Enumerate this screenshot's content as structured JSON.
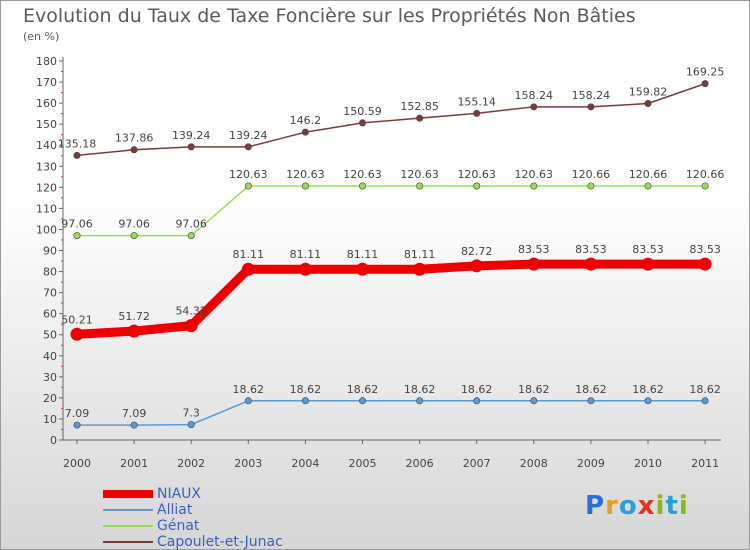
{
  "title": "Evolution du Taux de Taxe Foncière sur les Propriétés Non Bâties",
  "unit_label": "(en %)",
  "chart_data": {
    "type": "line",
    "title": "Evolution du Taux de Taxe Foncière sur les Propriétés Non Bâties",
    "ylabel": "(en %)",
    "xlabel": "",
    "ylim": [
      0,
      180
    ],
    "yticks": [
      0,
      10,
      20,
      30,
      40,
      50,
      60,
      70,
      80,
      90,
      100,
      110,
      120,
      130,
      140,
      150,
      160,
      170,
      180
    ],
    "categories": [
      "2000",
      "2001",
      "2002",
      "2003",
      "2004",
      "2005",
      "2006",
      "2007",
      "2008",
      "2009",
      "2010",
      "2011"
    ],
    "grid": false,
    "legend_position": "bottom-left",
    "series": [
      {
        "name": "NIAUX",
        "color": "#ee0000",
        "emphasis": true,
        "values": [
          50.21,
          51.72,
          54.32,
          81.11,
          81.11,
          81.11,
          81.11,
          82.72,
          83.53,
          83.53,
          83.53,
          83.53
        ],
        "labels": [
          "50.21",
          "51.72",
          "54.32",
          "81.11",
          "81.11",
          "81.11",
          "81.11",
          "82.72",
          "83.53",
          "83.53",
          "83.53",
          "83.53"
        ]
      },
      {
        "name": "Alliat",
        "color": "#5b9bd5",
        "emphasis": false,
        "values": [
          7.09,
          7.09,
          7.3,
          18.62,
          18.62,
          18.62,
          18.62,
          18.62,
          18.62,
          18.62,
          18.62,
          18.62
        ],
        "labels": [
          "7.09",
          "7.09",
          "7.3",
          "18.62",
          "18.62",
          "18.62",
          "18.62",
          "18.62",
          "18.62",
          "18.62",
          "18.62",
          "18.62"
        ]
      },
      {
        "name": "Génat",
        "color": "#99dd55",
        "emphasis": false,
        "values": [
          97.06,
          97.06,
          97.06,
          120.63,
          120.63,
          120.63,
          120.63,
          120.63,
          120.63,
          120.66,
          120.66,
          120.66
        ],
        "labels": [
          "97.06",
          "97.06",
          "97.06",
          "120.63",
          "120.63",
          "120.63",
          "120.63",
          "120.63",
          "120.63",
          "120.66",
          "120.66",
          "120.66"
        ]
      },
      {
        "name": "Capoulet-et-Junac",
        "color": "#7a3a3a",
        "emphasis": false,
        "values": [
          135.18,
          137.86,
          139.24,
          139.24,
          146.2,
          150.59,
          152.85,
          155.14,
          158.24,
          158.24,
          159.82,
          169.25
        ],
        "labels": [
          "135.18",
          "137.86",
          "139.24",
          "139.24",
          "146.2",
          "150.59",
          "152.85",
          "155.14",
          "158.24",
          "158.24",
          "159.82",
          "169.25"
        ]
      }
    ]
  },
  "logo": {
    "text": "Proxiti",
    "letters": [
      "P",
      "r",
      "o",
      "x",
      "i",
      "t",
      "i"
    ],
    "colors": [
      "#2a6fd8",
      "#e8a020",
      "#2a9fd8",
      "#e83020",
      "#8ab820",
      "#2a9fd8",
      "#8ab820"
    ]
  }
}
